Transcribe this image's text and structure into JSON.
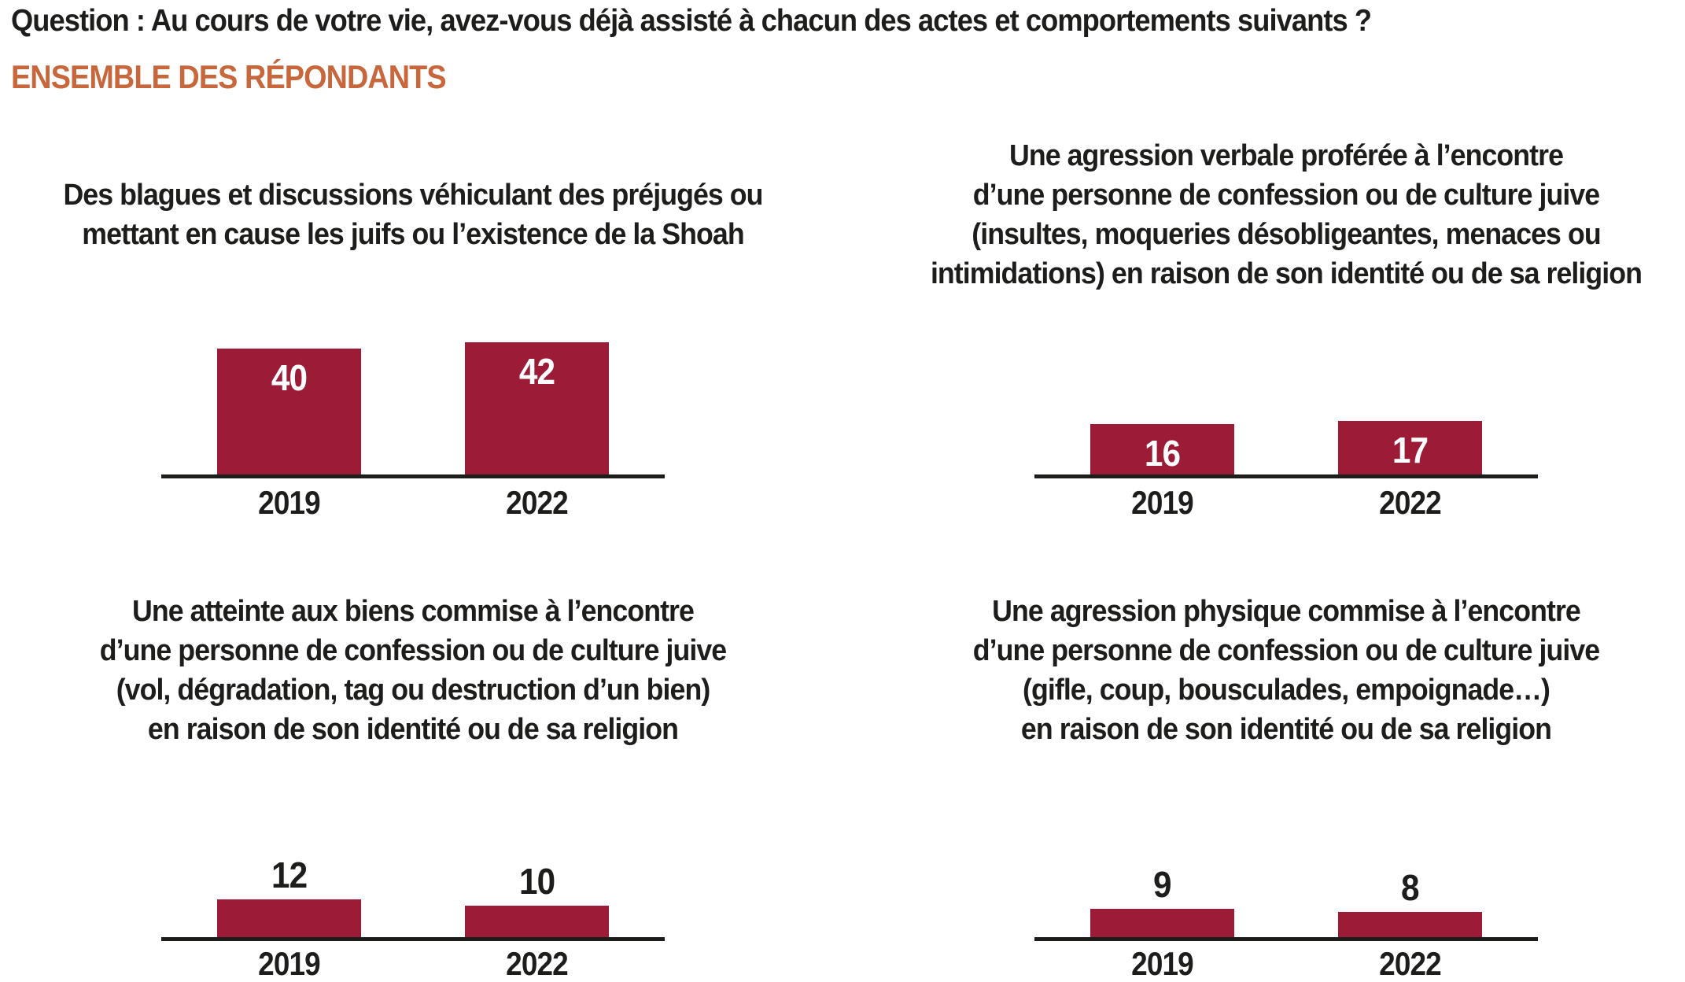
{
  "header": {
    "question": "Question : Au cours de votre vie, avez-vous déjà assisté à chacun des actes et comportements suivants ?",
    "audience": "ENSEMBLE DES RÉPONDANTS"
  },
  "colors": {
    "bar": "#9c1b36",
    "accent_orange": "#c8663c",
    "text": "#1d1d1b",
    "value_inside": "#ffffff"
  },
  "chart_data": [
    {
      "type": "bar",
      "title_lines": [
        "Des blagues et discussions véhiculant des préjugés ou",
        "mettant en cause les juifs ou l’existence de la Shoah"
      ],
      "categories": [
        "2019",
        "2022"
      ],
      "values": [
        40,
        42
      ],
      "value_label_position": "inside",
      "grid": false,
      "legend": false
    },
    {
      "type": "bar",
      "title_lines": [
        "Une agression verbale proférée à l’encontre",
        "d’une personne de confession ou de culture juive",
        "(insultes, moqueries désobligeantes, menaces ou",
        "intimidations) en raison de son identité ou de sa religion"
      ],
      "categories": [
        "2019",
        "2022"
      ],
      "values": [
        16,
        17
      ],
      "value_label_position": "inside",
      "grid": false,
      "legend": false
    },
    {
      "type": "bar",
      "title_lines": [
        "Une atteinte aux biens commise à l’encontre",
        "d’une personne de confession ou de culture juive",
        "(vol, dégradation, tag ou destruction d’un bien)",
        "en raison de son identité ou de sa religion"
      ],
      "categories": [
        "2019",
        "2022"
      ],
      "values": [
        12,
        10
      ],
      "value_label_position": "above",
      "grid": false,
      "legend": false
    },
    {
      "type": "bar",
      "title_lines": [
        "Une agression physique commise à l’encontre",
        "d’une personne de confession ou de culture juive",
        "(gifle, coup, bousculades, empoignade…)",
        "en raison de son identité ou de sa religion"
      ],
      "categories": [
        "2019",
        "2022"
      ],
      "values": [
        9,
        8
      ],
      "value_label_position": "above",
      "grid": false,
      "legend": false
    }
  ]
}
